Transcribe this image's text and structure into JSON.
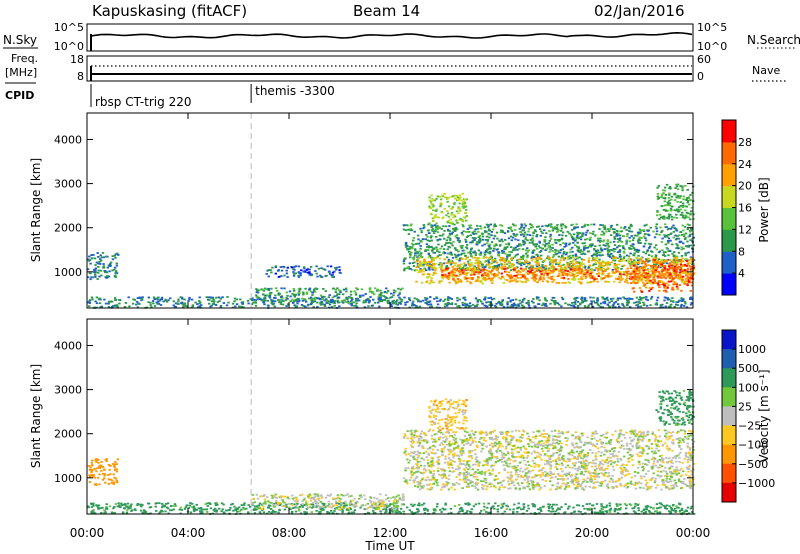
{
  "header": {
    "station": "Kapuskasing (fitACF)",
    "beam": "Beam 14",
    "date": "02/Jan/2016"
  },
  "top_panels": {
    "nsky_label": "N.Sky",
    "nsky_ticks": [
      "10^5",
      "10^0"
    ],
    "nsearch_label": "N.Search",
    "nsearch_ticks": [
      "10^5",
      "10^0"
    ],
    "freq_label_1": "Freq.",
    "freq_label_2": "[MHz]",
    "freq_ticks": [
      "18",
      "8"
    ],
    "nave_label": "Nave",
    "nave_ticks": [
      "60",
      "0"
    ],
    "cpid_label": "CPID",
    "cpid_segments": [
      {
        "label": "rbsp CT-trig 220",
        "start_hour": 0
      },
      {
        "label": "themis -3300",
        "start_hour": 6.5
      }
    ]
  },
  "x_axis": {
    "label": "Time UT",
    "ticks": [
      "00:00",
      "04:00",
      "08:00",
      "12:00",
      "16:00",
      "20:00",
      "00:00"
    ],
    "range_hours": [
      0,
      24
    ]
  },
  "y_axis": {
    "label": "Slant Range [km]",
    "ticks": [
      "1000",
      "2000",
      "3000",
      "4000"
    ],
    "range_km": [
      180,
      4600
    ]
  },
  "power_colorbar": {
    "label": "Power [dB]",
    "ticks": [
      "4",
      "8",
      "12",
      "16",
      "20",
      "24",
      "28"
    ],
    "colors": [
      "#0000ff",
      "#1f5fc8",
      "#2a9a4a",
      "#58c23a",
      "#c8d81e",
      "#ffa000",
      "#ff6a00",
      "#ff0000"
    ]
  },
  "velocity_colorbar": {
    "label": "Velocity [m s⁻¹]",
    "ticks": [
      "1000",
      "500",
      "100",
      "25",
      "−25",
      "−100",
      "−500",
      "−1000"
    ],
    "colors": [
      "#0a14c8",
      "#1f5fb0",
      "#2e9a5a",
      "#72c83c",
      "#bebebe",
      "#ffc820",
      "#ff9600",
      "#ff5000",
      "#e60000"
    ]
  },
  "chart_data": [
    {
      "type": "heatmap",
      "title": "Power [dB]",
      "xlabel": "Time UT",
      "ylabel": "Slant Range [km]",
      "xlim": [
        0,
        24
      ],
      "ylim": [
        180,
        4600
      ],
      "regions": [
        {
          "t0": 0.0,
          "t1": 1.2,
          "r0": 850,
          "r1": 1450,
          "power": 8
        },
        {
          "t0": 0.0,
          "t1": 24.0,
          "r0": 200,
          "r1": 450,
          "power": 8
        },
        {
          "t0": 6.5,
          "t1": 12.5,
          "r0": 300,
          "r1": 650,
          "power": 10
        },
        {
          "t0": 7.0,
          "t1": 10.0,
          "r0": 900,
          "r1": 1150,
          "power": 6
        },
        {
          "t0": 12.5,
          "t1": 24.0,
          "r0": 1050,
          "r1": 2100,
          "power": 10
        },
        {
          "t0": 13.0,
          "t1": 24.0,
          "r0": 750,
          "r1": 1350,
          "power": 20
        },
        {
          "t0": 14.0,
          "t1": 24.0,
          "r0": 850,
          "r1": 1100,
          "power": 26
        },
        {
          "t0": 13.5,
          "t1": 15.0,
          "r0": 2100,
          "r1": 2800,
          "power": 16
        },
        {
          "t0": 21.5,
          "t1": 24.0,
          "r0": 550,
          "r1": 1300,
          "power": 26
        },
        {
          "t0": 22.5,
          "t1": 24.0,
          "r0": 2200,
          "r1": 3000,
          "power": 12
        }
      ]
    },
    {
      "type": "heatmap",
      "title": "Velocity [m s⁻¹]",
      "xlabel": "Time UT",
      "ylabel": "Slant Range [km]",
      "xlim": [
        0,
        24
      ],
      "ylim": [
        180,
        4600
      ],
      "regions": [
        {
          "t0": 0.0,
          "t1": 1.2,
          "r0": 850,
          "r1": 1450,
          "velocity": -300
        },
        {
          "t0": 0.0,
          "t1": 24.0,
          "r0": 200,
          "r1": 450,
          "velocity": 150
        },
        {
          "t0": 6.5,
          "t1": 12.5,
          "r0": 300,
          "r1": 650,
          "velocity": 0
        },
        {
          "t0": 12.5,
          "t1": 24.0,
          "r0": 750,
          "r1": 2100,
          "velocity": 0
        },
        {
          "t0": 13.5,
          "t1": 15.0,
          "r0": 2100,
          "r1": 2800,
          "velocity": -60
        },
        {
          "t0": 22.5,
          "t1": 24.0,
          "r0": 2200,
          "r1": 3000,
          "velocity": 150
        }
      ]
    }
  ]
}
